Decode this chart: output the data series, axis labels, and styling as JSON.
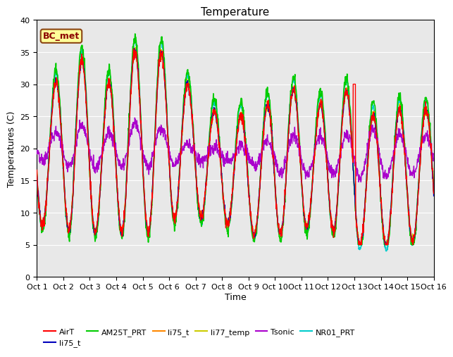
{
  "title": "Temperature",
  "xlabel": "Time",
  "ylabel": "Temperatures (C)",
  "ylim": [
    0,
    40
  ],
  "xlim": [
    0,
    15
  ],
  "background_color": "#e8e8e8",
  "tick_labels": [
    "Oct 1",
    "Oct 2",
    "Oct 3",
    "Oct 4",
    "Oct 5",
    "Oct 6",
    "Oct 7",
    "Oct 8",
    "Oct 9",
    "Oct 10",
    "Oct 11",
    "Oct 12",
    "Oct 13",
    "Oct 14",
    "Oct 15",
    "Oct 16"
  ],
  "annotation_text": "BC_met",
  "legend_labels": [
    "AirT",
    "li75_t",
    "AM25T_PRT",
    "li75_t",
    "li77_temp",
    "Tsonic",
    "NR01_PRT"
  ],
  "legend_colors": [
    "#ff0000",
    "#0000bb",
    "#00cc00",
    "#ff8800",
    "#cccc00",
    "#aa00cc",
    "#00cccc"
  ]
}
